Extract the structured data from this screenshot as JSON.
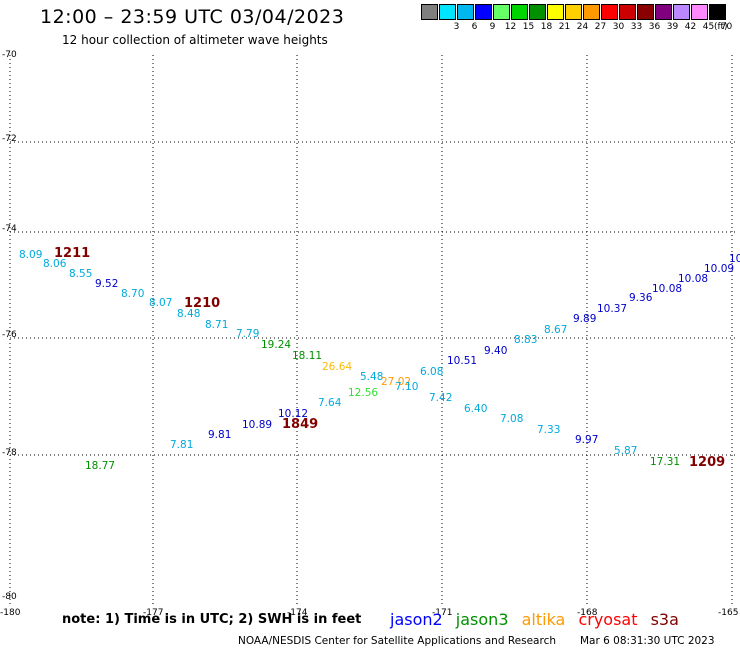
{
  "header": {
    "title": "12:00 – 23:59 UTC 03/04/2023",
    "subtitle": "12 hour collection of altimeter wave heights"
  },
  "legend": {
    "unit": "(ft)",
    "items": [
      {
        "label": "",
        "color": "#7f7f7f"
      },
      {
        "label": "3",
        "color": "#00e5ff"
      },
      {
        "label": "6",
        "color": "#00b7ee"
      },
      {
        "label": "9",
        "color": "#0000ff"
      },
      {
        "label": "12",
        "color": "#66ff66"
      },
      {
        "label": "15",
        "color": "#00d400"
      },
      {
        "label": "18",
        "color": "#009000"
      },
      {
        "label": "21",
        "color": "#ffff00"
      },
      {
        "label": "24",
        "color": "#ffd000"
      },
      {
        "label": "27",
        "color": "#ff9900"
      },
      {
        "label": "30",
        "color": "#ff0000"
      },
      {
        "label": "33",
        "color": "#cc0000"
      },
      {
        "label": "36",
        "color": "#880000"
      },
      {
        "label": "39",
        "color": "#800080"
      },
      {
        "label": "42",
        "color": "#bb88ff"
      },
      {
        "label": "45",
        "color": "#ff88ff"
      },
      {
        "label": "70",
        "color": "#000000"
      }
    ]
  },
  "map": {
    "lat_labels": [
      "-70",
      "-72",
      "-74",
      "-76",
      "-78",
      "-80"
    ],
    "lon_labels": [
      "-180",
      "-177",
      "-174",
      "-171",
      "-168",
      "-165"
    ],
    "observations": [
      {
        "text": "8.09",
        "color": "#00aadd"
      },
      {
        "text": "8.06",
        "color": "#00aadd"
      },
      {
        "text": "8.55",
        "color": "#00aadd"
      },
      {
        "text": "9.52",
        "color": "#0000cc"
      },
      {
        "text": "8.70",
        "color": "#00aadd"
      },
      {
        "text": "8.07",
        "color": "#00aadd"
      },
      {
        "text": "8.48",
        "color": "#00aadd"
      },
      {
        "text": "8.71",
        "color": "#00aadd"
      },
      {
        "text": "7.79",
        "color": "#00aadd"
      },
      {
        "text": "19.24",
        "color": "#009000"
      },
      {
        "text": "18.11",
        "color": "#009000"
      },
      {
        "text": "26.64",
        "color": "#ffbb00"
      },
      {
        "text": "5.48",
        "color": "#00aadd"
      },
      {
        "text": "27.02",
        "color": "#ff9900"
      },
      {
        "text": "7.10",
        "color": "#00aadd"
      },
      {
        "text": "12.56",
        "color": "#33dd33"
      },
      {
        "text": "7.64",
        "color": "#00aadd"
      },
      {
        "text": "6.08",
        "color": "#00aadd"
      },
      {
        "text": "7.42",
        "color": "#00aadd"
      },
      {
        "text": "6.40",
        "color": "#00aadd"
      },
      {
        "text": "7.08",
        "color": "#00aadd"
      },
      {
        "text": "7.33",
        "color": "#00aadd"
      },
      {
        "text": "9.97",
        "color": "#0000cc"
      },
      {
        "text": "5.87",
        "color": "#00aadd"
      },
      {
        "text": "17.31",
        "color": "#009000"
      },
      {
        "text": "10.12",
        "color": "#0000cc"
      },
      {
        "text": "10.89",
        "color": "#0000cc"
      },
      {
        "text": "9.81",
        "color": "#0000cc"
      },
      {
        "text": "7.81",
        "color": "#00aadd"
      },
      {
        "text": "18.77",
        "color": "#009000"
      },
      {
        "text": "10.51",
        "color": "#0000cc"
      },
      {
        "text": "9.40",
        "color": "#0000cc"
      },
      {
        "text": "8.83",
        "color": "#00aadd"
      },
      {
        "text": "8.67",
        "color": "#00aadd"
      },
      {
        "text": "9.89",
        "color": "#0000cc"
      },
      {
        "text": "10.37",
        "color": "#0000cc"
      },
      {
        "text": "9.36",
        "color": "#0000cc"
      },
      {
        "text": "10.08",
        "color": "#0000cc"
      },
      {
        "text": "10.08",
        "color": "#0000cc"
      },
      {
        "text": "10.09",
        "color": "#0000cc"
      },
      {
        "text": "10",
        "color": "#0000cc"
      }
    ],
    "pass_times": [
      "1211",
      "1210",
      "1849",
      "1209"
    ]
  },
  "footer": {
    "note": "note: 1) Time is in UTC; 2) SWH is in feet",
    "satellites": [
      {
        "name": "jason2",
        "color": "#0000ff"
      },
      {
        "name": "jason3",
        "color": "#009000"
      },
      {
        "name": "altika",
        "color": "#ff9900"
      },
      {
        "name": "cryosat",
        "color": "#ff0000"
      },
      {
        "name": "s3a",
        "color": "#800000"
      }
    ],
    "credit": "NOAA/NESDIS Center for Satellite Applications and Research",
    "generated": "Mar  6 08:31:30 UTC 2023"
  }
}
